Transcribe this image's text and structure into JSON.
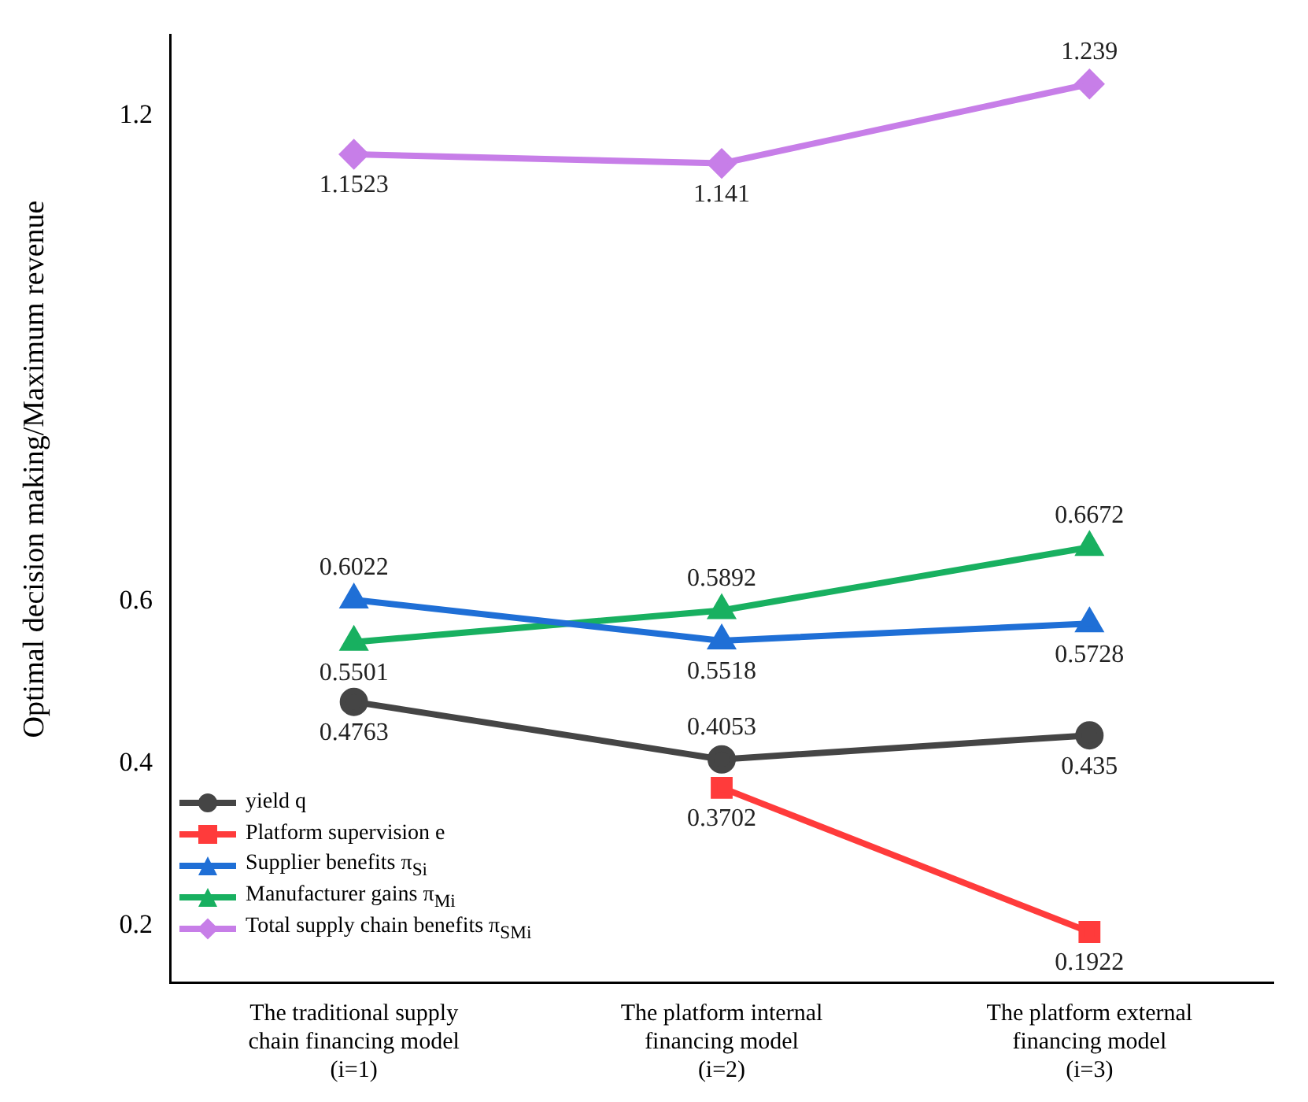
{
  "chart_data": {
    "type": "line",
    "ylabel": "Optimal decision making/Maximum revenue",
    "categories": [
      "The traditional supply chain financing model (i=1)",
      "The platform internal financing model (i=2)",
      "The platform external financing model (i=3)"
    ],
    "ylim": [
      0.13,
      1.3
    ],
    "yticks": [
      0.2,
      0.4,
      0.6,
      1.2
    ],
    "data_labels": true,
    "legend": "bottom left",
    "line_style": "solid",
    "series": [
      {
        "name": "yield q",
        "color": "#454545",
        "marker": "circle",
        "values": [
          0.4763,
          0.4053,
          0.435
        ]
      },
      {
        "name": "Platform supervision e",
        "color": "#ff3b3b",
        "marker": "square",
        "values": [
          null,
          0.3702,
          0.1922
        ]
      },
      {
        "name": "Supplier benefits π$_{Si}$",
        "color": "#1f6fd6",
        "marker": "triangle",
        "values": [
          0.6022,
          0.5518,
          0.5728
        ]
      },
      {
        "name": "Manufacturer gains π$_{Mi}$",
        "color": "#18b060",
        "marker": "triangle",
        "values": [
          0.5501,
          0.5892,
          0.6672
        ]
      },
      {
        "name": "Total supply chain benefits π$_{SMi}$",
        "color": "#c77ee8",
        "marker": "diamond",
        "values": [
          1.1523,
          1.141,
          1.239
        ]
      }
    ]
  }
}
